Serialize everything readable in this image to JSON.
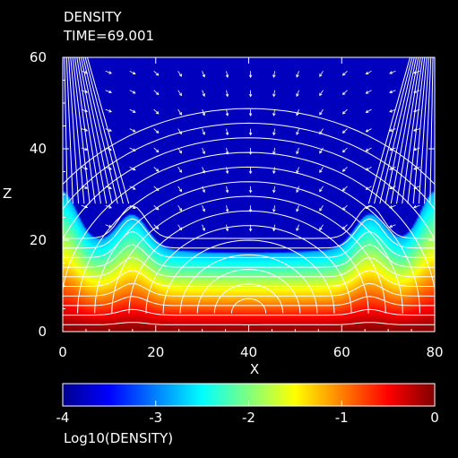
{
  "title": "DENSITY",
  "subtitle": "TIME=69.001",
  "chart_data": {
    "type": "heatmap",
    "title": "DENSITY",
    "subtitle": "TIME=69.001",
    "xlabel": "X",
    "ylabel": "Z",
    "xlim": [
      0,
      80
    ],
    "ylim": [
      0,
      60
    ],
    "x_ticks": [
      "0",
      "20",
      "40",
      "60",
      "80"
    ],
    "y_ticks": [
      "0",
      "20",
      "40",
      "60"
    ],
    "color_scale": {
      "label": "Log10(DENSITY)",
      "min": -4,
      "max": 0,
      "ticks": [
        "-4",
        "-3",
        "-2",
        "-1",
        "0"
      ],
      "colormap": "jet"
    },
    "overlays": [
      "white magnetic field lines (arched loops)",
      "white velocity arrows"
    ],
    "density_profile": {
      "surface_log_density": 0,
      "top_log_density": -4,
      "scale_height": 10,
      "dense_fingers_x": [
        15,
        66
      ],
      "dense_finger_peak_z": 22,
      "edge_bulge_z": 30,
      "center_front_z": 17
    }
  }
}
